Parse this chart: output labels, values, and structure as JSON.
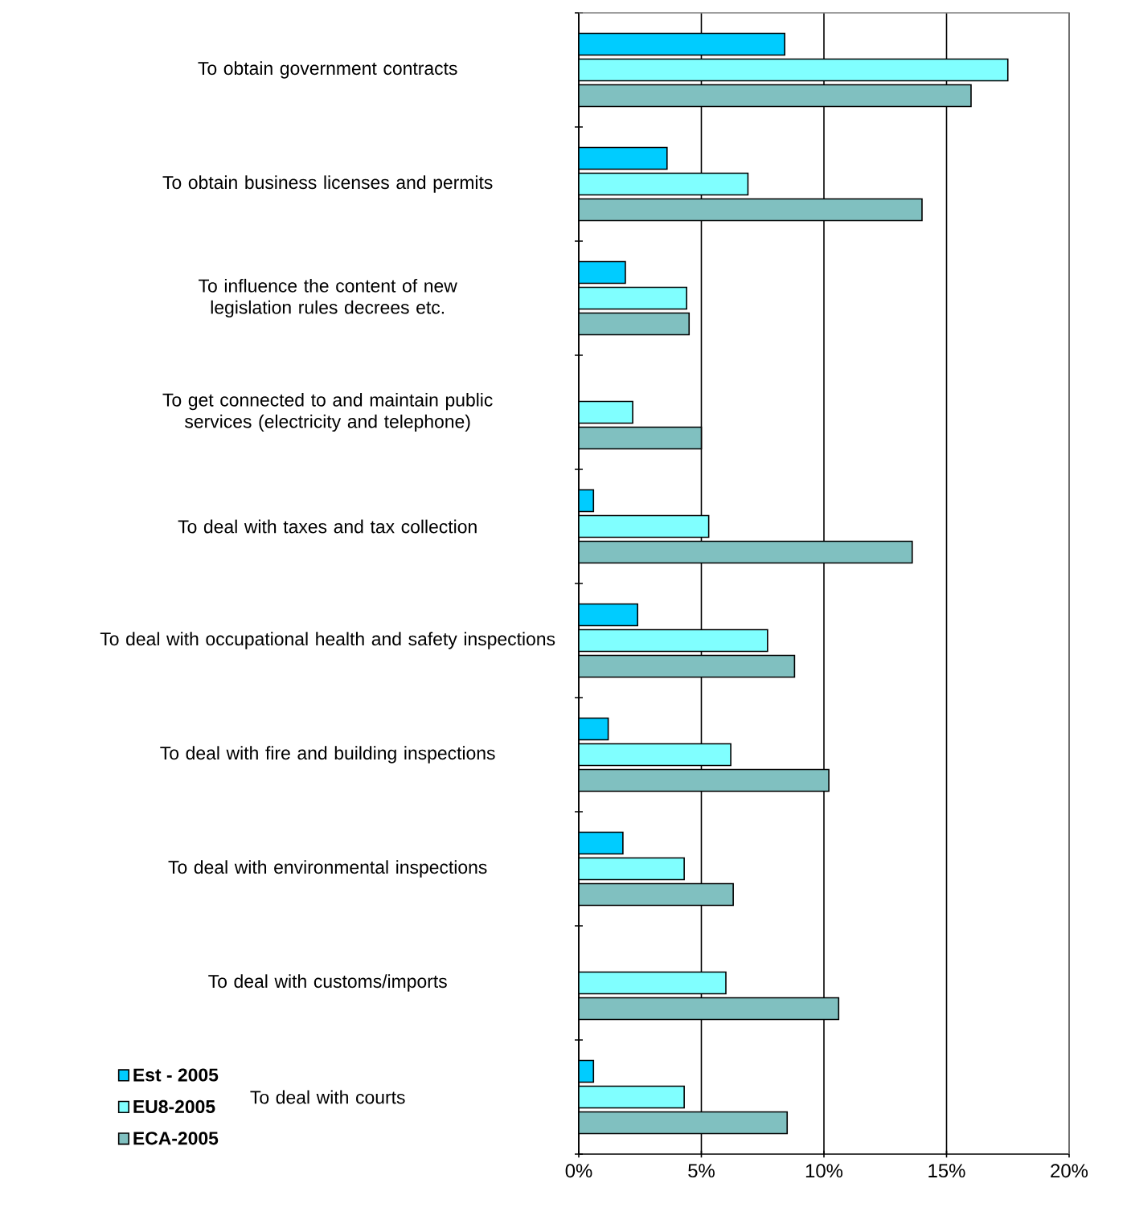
{
  "chart_data": {
    "type": "bar",
    "orientation": "horizontal",
    "categories": [
      "To obtain government contracts",
      "To obtain business licenses and permits",
      "To influence the content of new legislation rules decrees etc.",
      "To get connected to and maintain public services (electricity and telephone)",
      "To deal with taxes and tax collection",
      "To deal with occupational health and safety inspections",
      "To deal with fire and building inspections",
      "To deal with environmental inspections",
      "To deal with customs/imports",
      "To deal with courts"
    ],
    "series": [
      {
        "name": "Est - 2005",
        "color": "#00ccff",
        "values": [
          8.4,
          3.6,
          1.9,
          null,
          0.6,
          2.4,
          1.2,
          1.8,
          null,
          0.6
        ]
      },
      {
        "name": "EU8-2005",
        "color": "#80ffff",
        "values": [
          17.5,
          6.9,
          4.4,
          2.2,
          5.3,
          7.7,
          6.2,
          4.3,
          6.0,
          4.3
        ]
      },
      {
        "name": "ECA-2005",
        "color": "#80c0c0",
        "values": [
          16.0,
          14.0,
          4.5,
          5.0,
          13.6,
          8.8,
          10.2,
          6.3,
          10.6,
          8.5
        ]
      }
    ],
    "xlim": [
      0,
      20
    ],
    "xticks": [
      {
        "value": 0,
        "label": "0%"
      },
      {
        "value": 5,
        "label": "5%"
      },
      {
        "value": 10,
        "label": "10%"
      },
      {
        "value": 15,
        "label": "15%"
      },
      {
        "value": 20,
        "label": "20%"
      }
    ],
    "grid": "x",
    "legend": "bottom left"
  }
}
